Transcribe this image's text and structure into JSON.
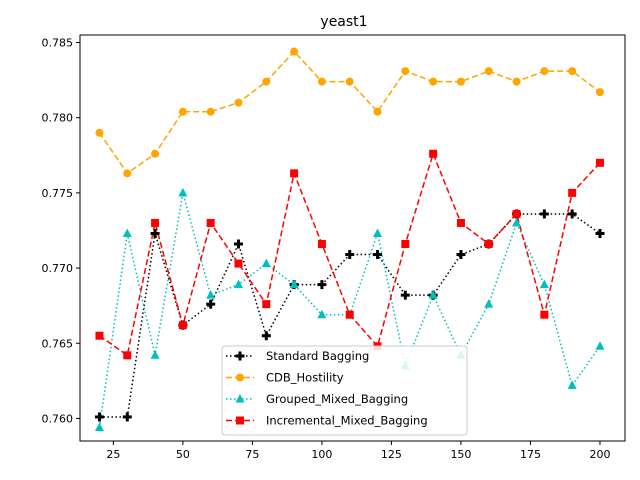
{
  "chart_data": {
    "type": "line",
    "title": "yeast1",
    "xlabel": "",
    "ylabel": "",
    "xlim": [
      13,
      209
    ],
    "ylim": [
      0.7585,
      0.7855
    ],
    "xticks": [
      25,
      50,
      75,
      100,
      125,
      150,
      175,
      200
    ],
    "yticks": [
      0.76,
      0.765,
      0.77,
      0.775,
      0.78,
      0.785
    ],
    "ytick_labels": [
      "0.760",
      "0.765",
      "0.770",
      "0.775",
      "0.780",
      "0.785"
    ],
    "grid": false,
    "legend_position": "lower center",
    "x": [
      20,
      30,
      40,
      50,
      60,
      70,
      80,
      90,
      100,
      110,
      120,
      130,
      140,
      150,
      160,
      170,
      180,
      190,
      200
    ],
    "series": [
      {
        "name": "Standard Bagging",
        "color": "#000000",
        "linestyle": "dotted",
        "marker": "plus",
        "values": [
          0.7601,
          0.7601,
          0.7723,
          0.7662,
          0.7676,
          0.7716,
          0.7655,
          0.7689,
          0.7689,
          0.7709,
          0.7709,
          0.7682,
          0.7682,
          0.7709,
          0.7716,
          0.7736,
          0.7736,
          0.7736,
          0.7723
        ]
      },
      {
        "name": "CDB_Hostility",
        "color": "#ffa500",
        "linestyle": "dashed",
        "marker": "circle",
        "values": [
          0.779,
          0.7763,
          0.7776,
          0.7804,
          0.7804,
          0.781,
          0.7824,
          0.7844,
          0.7824,
          0.7824,
          0.7804,
          0.7831,
          0.7824,
          0.7824,
          0.7831,
          0.7824,
          0.7831,
          0.7831,
          0.7817
        ]
      },
      {
        "name": "Grouped_Mixed_Bagging",
        "color": "#00bfbf",
        "linestyle": "dotted",
        "marker": "triangle",
        "values": [
          0.7594,
          0.7723,
          0.7642,
          0.775,
          0.7682,
          0.7689,
          0.7703,
          0.7689,
          0.7669,
          0.7669,
          0.7723,
          0.7635,
          0.7682,
          0.7642,
          0.7676,
          0.773,
          0.7689,
          0.7622,
          0.7648
        ]
      },
      {
        "name": "Incremental_Mixed_Bagging",
        "color": "#ff0000",
        "linestyle": "dashed",
        "marker": "square",
        "values": [
          0.7655,
          0.7642,
          0.773,
          0.7662,
          0.773,
          0.7703,
          0.7676,
          0.7763,
          0.7716,
          0.7669,
          0.7648,
          0.7716,
          0.7776,
          0.773,
          0.7716,
          0.7736,
          0.7669,
          0.775,
          0.777
        ]
      }
    ]
  }
}
